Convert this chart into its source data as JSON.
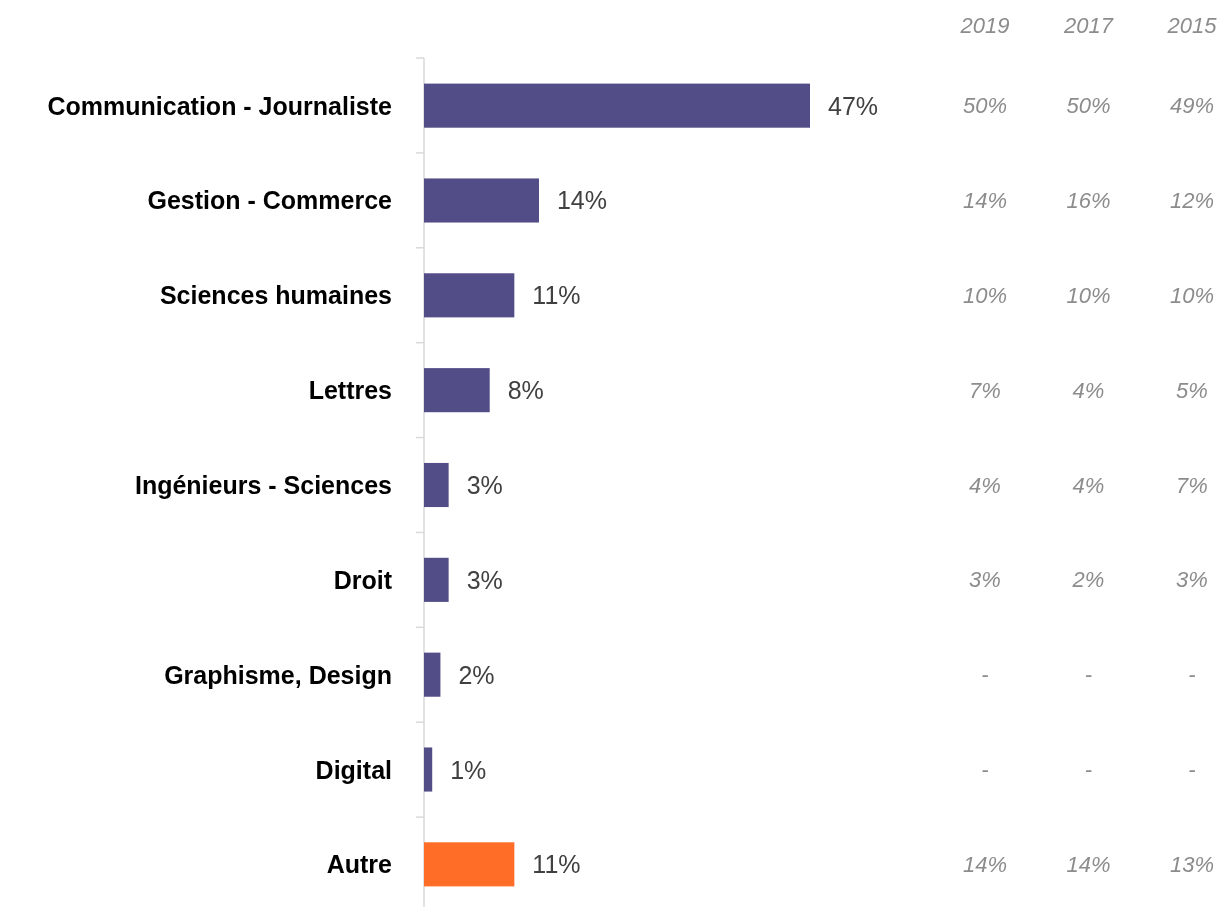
{
  "chart_data": [
    {
      "type": "bar",
      "orientation": "horizontal",
      "categories": [
        "Communication - Journaliste",
        "Gestion - Commerce",
        "Sciences humaines",
        "Lettres",
        "Ingénieurs - Sciences",
        "Droit",
        "Graphisme, Design",
        "Digital",
        "Autre"
      ],
      "values": [
        47,
        14,
        11,
        8,
        3,
        3,
        2,
        1,
        11
      ],
      "colors": [
        "#524c87",
        "#524c87",
        "#524c87",
        "#524c87",
        "#524c87",
        "#524c87",
        "#524c87",
        "#524c87",
        "#ff6d26"
      ],
      "value_labels": [
        "47%",
        "14%",
        "11%",
        "8%",
        "3%",
        "3%",
        "2%",
        "1%",
        "11%"
      ]
    },
    {
      "type": "other",
      "categories": [
        "2019",
        "2017",
        "2015"
      ],
      "cell_labels": [
        [
          "50%",
          "50%",
          "49%"
        ],
        [
          "14%",
          "16%",
          "12%"
        ],
        [
          "10%",
          "10%",
          "10%"
        ],
        [
          "7%",
          "4%",
          "5%"
        ],
        [
          "4%",
          "4%",
          "7%"
        ],
        [
          "3%",
          "2%",
          "3%"
        ],
        [
          "-",
          "-",
          "-"
        ],
        [
          "-",
          "-",
          "-"
        ],
        [
          "14%",
          "14%",
          "13%"
        ]
      ]
    }
  ]
}
